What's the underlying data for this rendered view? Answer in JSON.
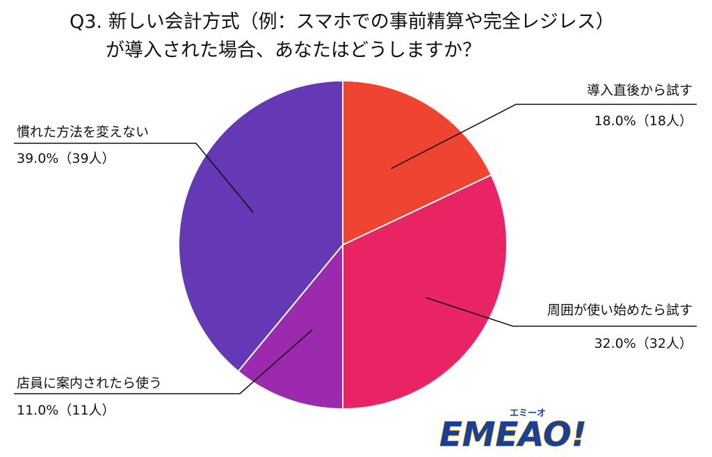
{
  "chart_data": {
    "type": "pie",
    "title_lines": [
      "Q3. 新しい会計方式（例：スマホでの事前精算や完全レジレス）",
      "が導入された場合、あなたはどうしますか？"
    ],
    "slices": [
      {
        "label": "導入直後から試す",
        "value": 18.0,
        "value_text": "18.0%（18人）",
        "color": "#f04433"
      },
      {
        "label": "周囲が使い始めたら試す",
        "value": 32.0,
        "value_text": "32.0%（32人）",
        "color": "#e82465"
      },
      {
        "label": "店員に案内されたら使う",
        "value": 11.0,
        "value_text": "11.0%（11人）",
        "color": "#9b2aae"
      },
      {
        "label": "慣れた方法を変えない",
        "value": 39.0,
        "value_text": "39.0%（39人）",
        "color": "#6538b5"
      }
    ],
    "start": "top",
    "direction": "clockwise",
    "legend": "none"
  },
  "logo": {
    "text": "EMEAO!",
    "sub_text": "エミーオ",
    "main_color": "#1a3f9b",
    "accent_color": "#f5c000"
  }
}
